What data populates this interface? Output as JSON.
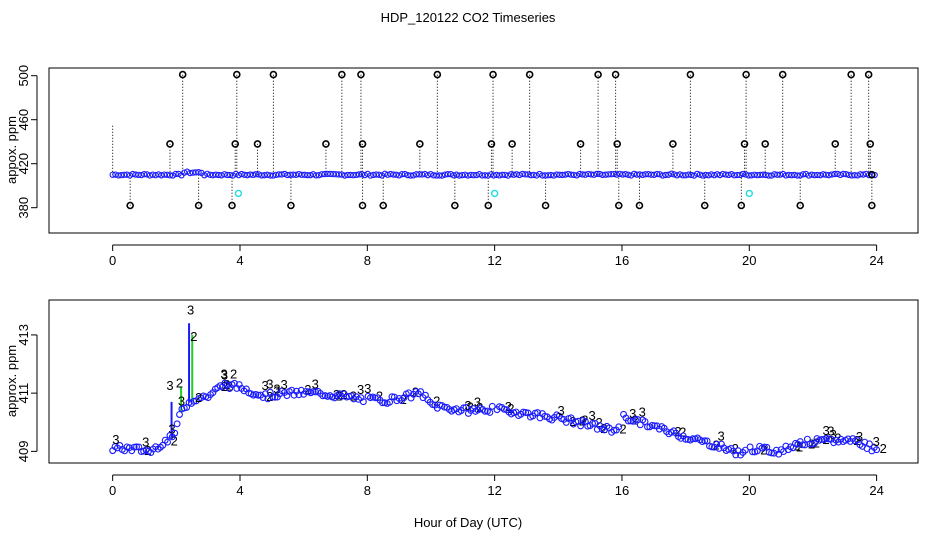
{
  "title": "HDP_120122  CO2 Timeseries",
  "colors": {
    "axis": "#000000",
    "black_points": "#000000",
    "blue_points": "#1a1aff",
    "green_points": "#22cc22",
    "cyan_points": "#22dddd"
  },
  "chart_data": [
    {
      "type": "scatter",
      "name": "top-panel",
      "ylabel": "appox. ppm",
      "xlabel": "",
      "xlim": [
        -2,
        25.3
      ],
      "ylim": [
        357,
        507
      ],
      "x_ticks": [
        0,
        4,
        8,
        12,
        16,
        20,
        24
      ],
      "x_tick_labels": [
        "0",
        "4",
        "8",
        "12",
        "16",
        "20",
        "24"
      ],
      "y_ticks": [
        380,
        420,
        460,
        500
      ],
      "y_tick_labels": [
        "380",
        "420",
        "460",
        "500"
      ],
      "baseline": 410,
      "spikes_high": [
        {
          "x": 1.8,
          "y": 438
        },
        {
          "x": 2.2,
          "y": 501
        },
        {
          "x": 3.85,
          "y": 438
        },
        {
          "x": 3.9,
          "y": 501
        },
        {
          "x": 4.55,
          "y": 438
        },
        {
          "x": 5.05,
          "y": 501
        },
        {
          "x": 6.7,
          "y": 438
        },
        {
          "x": 7.2,
          "y": 501
        },
        {
          "x": 7.8,
          "y": 501
        },
        {
          "x": 7.85,
          "y": 438
        },
        {
          "x": 9.65,
          "y": 438
        },
        {
          "x": 10.2,
          "y": 501
        },
        {
          "x": 11.9,
          "y": 438
        },
        {
          "x": 11.95,
          "y": 501
        },
        {
          "x": 12.55,
          "y": 438
        },
        {
          "x": 13.1,
          "y": 501
        },
        {
          "x": 14.7,
          "y": 438
        },
        {
          "x": 15.25,
          "y": 501
        },
        {
          "x": 15.8,
          "y": 501
        },
        {
          "x": 15.85,
          "y": 438
        },
        {
          "x": 17.6,
          "y": 438
        },
        {
          "x": 18.15,
          "y": 501
        },
        {
          "x": 19.85,
          "y": 438
        },
        {
          "x": 19.9,
          "y": 501
        },
        {
          "x": 20.5,
          "y": 438
        },
        {
          "x": 21.05,
          "y": 501
        },
        {
          "x": 22.7,
          "y": 438
        },
        {
          "x": 23.2,
          "y": 501
        },
        {
          "x": 23.75,
          "y": 501
        },
        {
          "x": 23.8,
          "y": 438
        }
      ],
      "spikes_low": [
        0.55,
        2.7,
        3.75,
        5.6,
        7.85,
        8.5,
        10.75,
        11.8,
        13.6,
        15.9,
        16.55,
        18.6,
        19.75,
        21.6,
        23.85
      ],
      "cyan_points": [
        {
          "x": 3.95,
          "y": 393
        },
        {
          "x": 12.0,
          "y": 393
        },
        {
          "x": 20.0,
          "y": 393
        }
      ]
    },
    {
      "type": "scatter",
      "name": "bottom-panel",
      "ylabel": "approx. ppm",
      "xlabel": "Hour of Day (UTC)",
      "xlim": [
        -2,
        25.3
      ],
      "ylim": [
        408.6,
        414.2
      ],
      "x_ticks": [
        0,
        4,
        8,
        12,
        16,
        20,
        24
      ],
      "x_tick_labels": [
        "0",
        "4",
        "8",
        "12",
        "16",
        "20",
        "24"
      ],
      "y_ticks": [
        409,
        411,
        413
      ],
      "y_tick_labels": [
        "409",
        "411",
        "413"
      ],
      "point_label_1": "3",
      "point_label_2": "2",
      "trend": [
        {
          "x": 0.0,
          "y": 409.1
        },
        {
          "x": 0.6,
          "y": 409.1
        },
        {
          "x": 1.2,
          "y": 409.0
        },
        {
          "x": 1.5,
          "y": 409.25
        },
        {
          "x": 1.9,
          "y": 409.5
        },
        {
          "x": 2.2,
          "y": 410.5
        },
        {
          "x": 2.55,
          "y": 410.8
        },
        {
          "x": 3.0,
          "y": 410.9
        },
        {
          "x": 3.5,
          "y": 411.3
        },
        {
          "x": 4.0,
          "y": 411.2
        },
        {
          "x": 4.8,
          "y": 410.9
        },
        {
          "x": 5.5,
          "y": 411.0
        },
        {
          "x": 6.5,
          "y": 411.0
        },
        {
          "x": 7.8,
          "y": 410.8
        },
        {
          "x": 8.6,
          "y": 410.75
        },
        {
          "x": 9.7,
          "y": 411.0
        },
        {
          "x": 10.0,
          "y": 410.6
        },
        {
          "x": 11.0,
          "y": 410.4
        },
        {
          "x": 12.0,
          "y": 410.45
        },
        {
          "x": 13.0,
          "y": 410.3
        },
        {
          "x": 14.0,
          "y": 410.15
        },
        {
          "x": 15.0,
          "y": 409.9
        },
        {
          "x": 15.8,
          "y": 409.7
        },
        {
          "x": 16.0,
          "y": 410.2
        },
        {
          "x": 17.0,
          "y": 409.85
        },
        {
          "x": 18.0,
          "y": 409.5
        },
        {
          "x": 19.0,
          "y": 409.2
        },
        {
          "x": 19.8,
          "y": 408.9
        },
        {
          "x": 20.0,
          "y": 409.1
        },
        {
          "x": 21.0,
          "y": 409.0
        },
        {
          "x": 21.5,
          "y": 409.3
        },
        {
          "x": 22.5,
          "y": 409.35
        },
        {
          "x": 23.3,
          "y": 409.4
        },
        {
          "x": 23.9,
          "y": 409.1
        }
      ],
      "gaps": [
        [
          7.9,
          8.0
        ],
        [
          11.95,
          12.05
        ],
        [
          15.9,
          16.0
        ],
        [
          19.9,
          20.0
        ]
      ],
      "peaks": [
        {
          "x": 1.85,
          "y": 410.7
        },
        {
          "x": 2.15,
          "y": 411.2
        },
        {
          "x": 2.4,
          "y": 413.4
        },
        {
          "x": 2.5,
          "y": 413.0
        }
      ],
      "labeled_points": [
        {
          "label": "3",
          "x": 0.1,
          "y": 409.25
        },
        {
          "x": 1.8,
          "y": 411.1,
          "label": "3"
        },
        {
          "x": 2.1,
          "y": 411.2,
          "label": "2"
        },
        {
          "x": 2.45,
          "y": 413.7,
          "label": "3"
        },
        {
          "x": 2.55,
          "y": 412.8,
          "label": "2"
        },
        {
          "x": 3.5,
          "y": 411.5,
          "label": "3"
        },
        {
          "x": 3.8,
          "y": 411.5,
          "label": "2"
        },
        {
          "x": 2.7,
          "y": 410.7,
          "label": "2"
        }
      ]
    }
  ]
}
